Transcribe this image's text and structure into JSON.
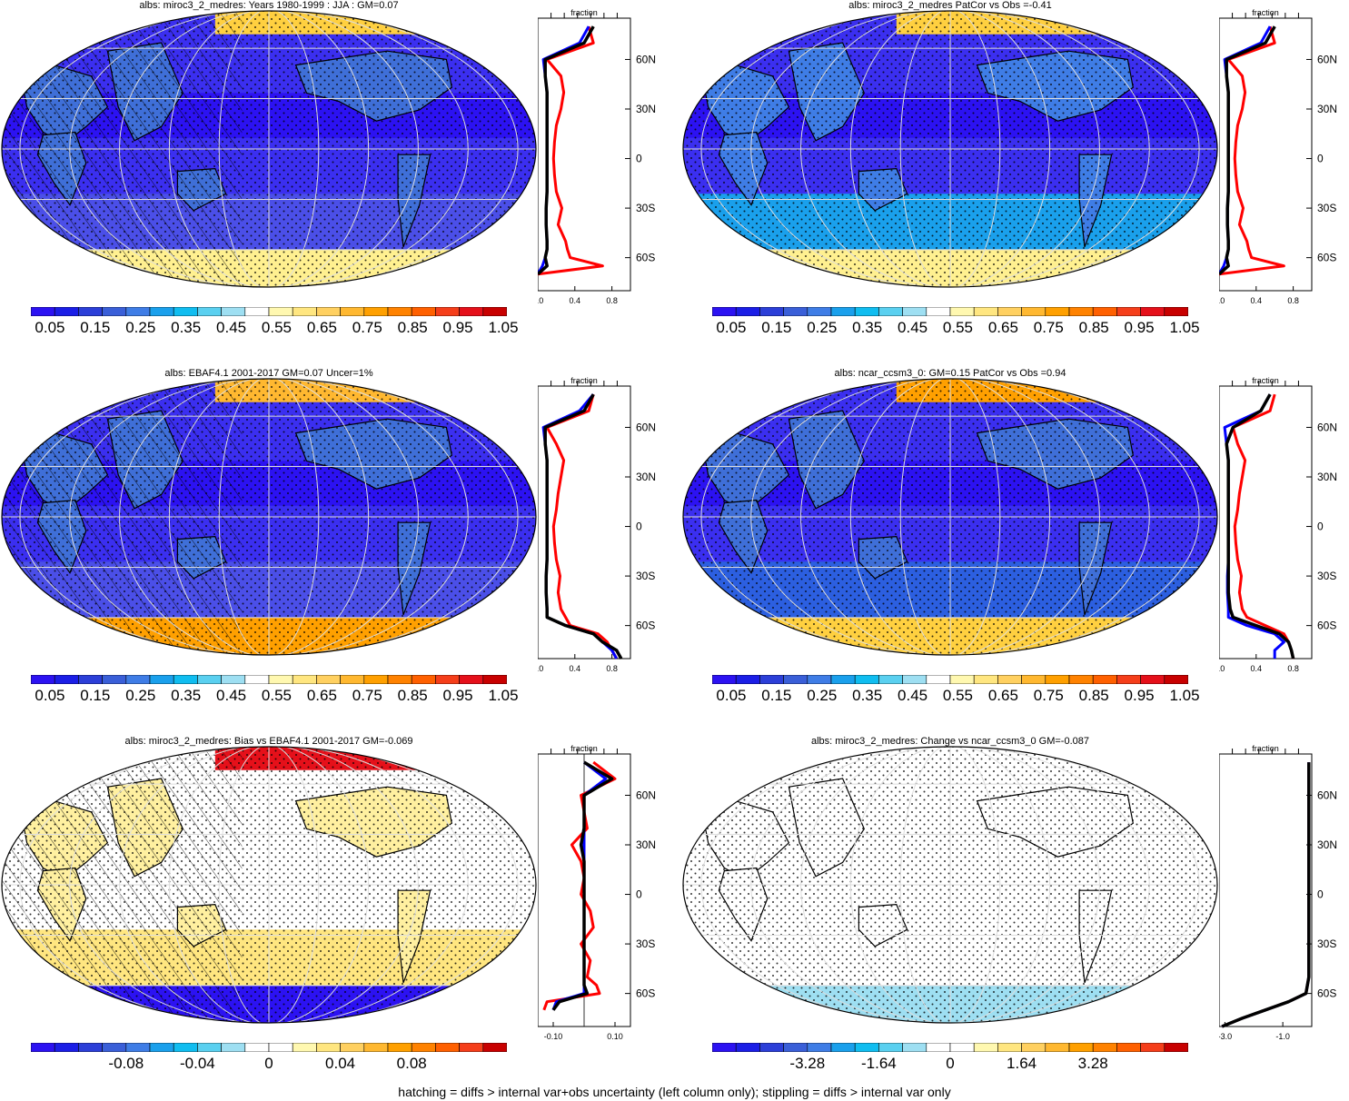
{
  "footer": "hatching = diffs > internal var+obs uncertainty (left column only); stippling = diffs > internal var only",
  "profile_title": "fraction",
  "lat_labels": [
    "60N",
    "30N",
    "0",
    "30S",
    "60S"
  ],
  "colors": {
    "abs_scale": [
      "#2c12f2",
      "#1b1ee6",
      "#2c3fd8",
      "#3a5fd8",
      "#3f7de6",
      "#1aa0ec",
      "#10bdf0",
      "#5ad0f0",
      "#9edff2",
      "#ffffff",
      "#fff8b0",
      "#ffe680",
      "#ffd060",
      "#ffb830",
      "#ffa000",
      "#ff8200",
      "#ff6000",
      "#f53e1a",
      "#e5101a",
      "#c80000"
    ],
    "diff_scale": [
      "#2c12f2",
      "#1b1ee6",
      "#2c3fd8",
      "#3a5fd8",
      "#3f7de6",
      "#1aa0ec",
      "#10bdf0",
      "#5ad0f0",
      "#9edff2",
      "#ffffff",
      "#ffffff",
      "#fff8b0",
      "#ffe680",
      "#ffd060",
      "#ffb830",
      "#ffa000",
      "#ff8200",
      "#ff6000",
      "#f53e1a",
      "#c80000"
    ],
    "model_line": "#ff0000",
    "obs_line": "#0000ff",
    "mean_line": "#000000"
  },
  "panels": [
    {
      "title": "albs: miroc3_2_medres: Years 1980-1999 : JJA : GM=0.07",
      "cbar_labels": [
        "0.05",
        "0.15",
        "0.25",
        "0.35",
        "0.45",
        "0.55",
        "0.65",
        "0.75",
        "0.85",
        "0.95",
        "1.05"
      ],
      "prof_ticks": [
        "0.0",
        "0.4",
        "0.8"
      ]
    },
    {
      "title": "albs: miroc3_2_medres PatCor vs Obs =-0.41",
      "cbar_labels": [
        "0.05",
        "0.15",
        "0.25",
        "0.35",
        "0.45",
        "0.55",
        "0.65",
        "0.75",
        "0.85",
        "0.95",
        "1.05"
      ],
      "prof_ticks": [
        "0.0",
        "0.4",
        "0.8"
      ]
    },
    {
      "title": "albs: EBAF4.1 2001-2017 GM=0.07 Uncer=1%",
      "cbar_labels": [
        "0.05",
        "0.15",
        "0.25",
        "0.35",
        "0.45",
        "0.55",
        "0.65",
        "0.75",
        "0.85",
        "0.95",
        "1.05"
      ],
      "prof_ticks": [
        "0.0",
        "0.4",
        "0.8"
      ]
    },
    {
      "title": "albs: ncar_ccsm3_0: GM=0.15 PatCor vs Obs =0.94",
      "cbar_labels": [
        "0.05",
        "0.15",
        "0.25",
        "0.35",
        "0.45",
        "0.55",
        "0.65",
        "0.75",
        "0.85",
        "0.95",
        "1.05"
      ],
      "prof_ticks": [
        "0.0",
        "0.4",
        "0.8"
      ]
    },
    {
      "title": "albs: miroc3_2_medres: Bias vs EBAF4.1 2001-2017 GM=-0.069",
      "cbar_labels": [
        "-0.08",
        "-0.04",
        "0",
        "0.04",
        "0.08"
      ],
      "prof_ticks": [
        "-0.10",
        "0.10"
      ]
    },
    {
      "title": "albs: miroc3_2_medres: Change vs ncar_ccsm3_0 GM=-0.087",
      "cbar_labels": [
        "-3.28",
        "-1.64",
        "0",
        "1.64",
        "3.28"
      ],
      "prof_ticks": [
        "-3.0",
        "-1.0"
      ]
    }
  ],
  "chart_data": [
    {
      "type": "heatmap",
      "title": "albs: miroc3_2_medres: Years 1980-1999 : JJA : GM=0.07",
      "colorbar_ticks": [
        0.05,
        0.15,
        0.25,
        0.35,
        0.45,
        0.55,
        0.65,
        0.75,
        0.85,
        0.95,
        1.05
      ],
      "zonal_profile": {
        "xlim": [
          0,
          1.0
        ],
        "lat": [
          -70,
          -65,
          -60,
          -55,
          -50,
          -40,
          -30,
          -20,
          -10,
          0,
          10,
          20,
          30,
          40,
          50,
          60,
          70,
          80
        ],
        "series": [
          {
            "values": [
              0.0,
              0.7,
              0.35,
              0.32,
              0.3,
              0.22,
              0.26,
              0.2,
              0.18,
              0.17,
              0.18,
              0.2,
              0.25,
              0.28,
              0.25,
              0.1,
              0.6,
              0.55
            ]
          },
          {
            "values": [
              0.0,
              0.05,
              0.08,
              0.1,
              0.1,
              0.09,
              0.09,
              0.1,
              0.1,
              0.1,
              0.1,
              0.1,
              0.1,
              0.1,
              0.08,
              0.06,
              0.45,
              0.55
            ]
          },
          {
            "values": [
              0.0,
              0.1,
              0.08,
              0.1,
              0.1,
              0.09,
              0.09,
              0.1,
              0.1,
              0.1,
              0.1,
              0.1,
              0.1,
              0.1,
              0.08,
              0.08,
              0.5,
              0.6
            ]
          }
        ]
      }
    },
    {
      "type": "heatmap",
      "title": "albs: miroc3_2_medres PatCor vs Obs =-0.41",
      "colorbar_ticks": [
        0.05,
        0.15,
        0.25,
        0.35,
        0.45,
        0.55,
        0.65,
        0.75,
        0.85,
        0.95,
        1.05
      ],
      "zonal_profile": {
        "xlim": [
          0,
          1.0
        ],
        "lat": [
          -70,
          -65,
          -60,
          -55,
          -50,
          -40,
          -30,
          -20,
          -10,
          0,
          10,
          20,
          30,
          40,
          50,
          60,
          70,
          80
        ],
        "series": [
          {
            "values": [
              0.0,
              0.7,
              0.35,
              0.32,
              0.3,
              0.22,
              0.26,
              0.2,
              0.18,
              0.17,
              0.18,
              0.2,
              0.25,
              0.28,
              0.25,
              0.1,
              0.6,
              0.55
            ]
          },
          {
            "values": [
              0.0,
              0.05,
              0.08,
              0.1,
              0.1,
              0.09,
              0.09,
              0.1,
              0.1,
              0.1,
              0.1,
              0.1,
              0.1,
              0.1,
              0.08,
              0.06,
              0.45,
              0.55
            ]
          },
          {
            "values": [
              0.0,
              0.1,
              0.08,
              0.1,
              0.1,
              0.09,
              0.09,
              0.1,
              0.1,
              0.1,
              0.1,
              0.1,
              0.1,
              0.1,
              0.08,
              0.08,
              0.5,
              0.6
            ]
          }
        ]
      }
    },
    {
      "type": "heatmap",
      "title": "albs: EBAF4.1 2001-2017 GM=0.07 Uncer=1%",
      "colorbar_ticks": [
        0.05,
        0.15,
        0.25,
        0.35,
        0.45,
        0.55,
        0.65,
        0.75,
        0.85,
        0.95,
        1.05
      ],
      "zonal_profile": {
        "xlim": [
          0,
          1.0
        ],
        "lat": [
          -80,
          -75,
          -70,
          -65,
          -60,
          -55,
          -50,
          -40,
          -30,
          -20,
          -10,
          0,
          10,
          20,
          30,
          40,
          50,
          60,
          70,
          80
        ],
        "series": [
          {
            "values": [
              0.85,
              0.8,
              0.75,
              0.65,
              0.35,
              0.3,
              0.25,
              0.22,
              0.24,
              0.2,
              0.18,
              0.17,
              0.2,
              0.22,
              0.25,
              0.28,
              0.2,
              0.1,
              0.55,
              0.6
            ]
          },
          {
            "values": [
              0.85,
              0.8,
              0.7,
              0.6,
              0.3,
              0.1,
              0.1,
              0.09,
              0.09,
              0.1,
              0.1,
              0.1,
              0.1,
              0.1,
              0.1,
              0.1,
              0.08,
              0.06,
              0.45,
              0.6
            ]
          },
          {
            "values": [
              0.9,
              0.85,
              0.7,
              0.6,
              0.3,
              0.1,
              0.1,
              0.09,
              0.09,
              0.1,
              0.1,
              0.1,
              0.1,
              0.1,
              0.1,
              0.1,
              0.08,
              0.08,
              0.5,
              0.6
            ]
          }
        ]
      }
    },
    {
      "type": "heatmap",
      "title": "albs: ncar_ccsm3_0: GM=0.15 PatCor vs Obs =0.94",
      "colorbar_ticks": [
        0.05,
        0.15,
        0.25,
        0.35,
        0.45,
        0.55,
        0.65,
        0.75,
        0.85,
        0.95,
        1.05
      ],
      "zonal_profile": {
        "xlim": [
          0,
          1.0
        ],
        "lat": [
          -80,
          -75,
          -70,
          -65,
          -60,
          -55,
          -50,
          -40,
          -30,
          -20,
          -10,
          0,
          10,
          20,
          30,
          40,
          50,
          60,
          70,
          80
        ],
        "series": [
          {
            "values": [
              0.8,
              0.78,
              0.75,
              0.7,
              0.5,
              0.3,
              0.25,
              0.22,
              0.24,
              0.2,
              0.18,
              0.17,
              0.2,
              0.22,
              0.25,
              0.28,
              0.2,
              0.15,
              0.55,
              0.6
            ]
          },
          {
            "values": [
              0.6,
              0.6,
              0.7,
              0.6,
              0.3,
              0.1,
              0.1,
              0.09,
              0.09,
              0.1,
              0.1,
              0.1,
              0.1,
              0.1,
              0.1,
              0.1,
              0.08,
              0.06,
              0.45,
              0.55
            ]
          },
          {
            "values": [
              0.8,
              0.78,
              0.75,
              0.65,
              0.4,
              0.15,
              0.12,
              0.1,
              0.1,
              0.1,
              0.1,
              0.1,
              0.1,
              0.1,
              0.1,
              0.1,
              0.08,
              0.15,
              0.45,
              0.55
            ]
          }
        ]
      }
    },
    {
      "type": "heatmap",
      "title": "albs: miroc3_2_medres: Bias vs EBAF4.1 2001-2017 GM=-0.069",
      "colorbar_ticks": [
        -0.08,
        -0.04,
        0,
        0.04,
        0.08
      ],
      "zonal_profile": {
        "xlim": [
          -0.15,
          0.15
        ],
        "lat": [
          -70,
          -65,
          -60,
          -55,
          -50,
          -40,
          -30,
          -20,
          -10,
          0,
          10,
          20,
          30,
          40,
          50,
          60,
          70,
          80
        ],
        "series": [
          {
            "values": [
              -0.13,
              -0.12,
              0.05,
              0.04,
              0.01,
              0.02,
              -0.01,
              0.03,
              0.02,
              -0.01,
              0.0,
              -0.01,
              -0.04,
              0.01,
              0.0,
              -0.01,
              0.1,
              0.03
            ]
          },
          {
            "values": [
              -0.1,
              -0.09,
              0.0,
              0.0,
              0.0,
              0.0,
              0.0,
              0.0,
              0.0,
              0.0,
              0.0,
              0.0,
              0.0,
              0.0,
              0.0,
              0.0,
              0.07,
              0.0
            ]
          },
          {
            "values": [
              -0.1,
              -0.08,
              0.01,
              0.0,
              0.0,
              0.0,
              0.0,
              0.0,
              0.0,
              0.0,
              0.0,
              0.0,
              -0.01,
              0.0,
              0.0,
              0.0,
              0.09,
              0.0
            ]
          }
        ]
      }
    },
    {
      "type": "heatmap",
      "title": "albs: miroc3_2_medres: Change vs ncar_ccsm3_0 GM=-0.087",
      "colorbar_ticks": [
        -3.28,
        -1.64,
        0,
        1.64,
        3.28
      ],
      "zonal_profile": {
        "xlim": [
          -3.2,
          0.0
        ],
        "lat": [
          -80,
          -75,
          -70,
          -65,
          -60,
          -50,
          -40,
          -30,
          -20,
          -10,
          0,
          10,
          20,
          30,
          40,
          50,
          60,
          70,
          80
        ],
        "series": [
          {
            "values": [
              -3.1,
              -2.4,
              -1.6,
              -0.8,
              -0.2,
              -0.1,
              -0.1,
              -0.1,
              -0.1,
              -0.1,
              -0.1,
              -0.1,
              -0.1,
              -0.1,
              -0.1,
              -0.1,
              -0.1,
              -0.1,
              -0.1
            ]
          },
          {
            "values": [
              -3.1,
              -2.4,
              -1.6,
              -0.8,
              -0.2,
              -0.1,
              -0.1,
              -0.1,
              -0.1,
              -0.1,
              -0.1,
              -0.1,
              -0.1,
              -0.1,
              -0.1,
              -0.1,
              -0.1,
              -0.1,
              -0.1
            ]
          },
          {
            "values": [
              -3.1,
              -2.4,
              -1.6,
              -0.8,
              -0.2,
              -0.1,
              -0.1,
              -0.1,
              -0.1,
              -0.1,
              -0.1,
              -0.1,
              -0.1,
              -0.1,
              -0.1,
              -0.1,
              -0.1,
              -0.1,
              -0.1
            ]
          }
        ]
      }
    }
  ]
}
